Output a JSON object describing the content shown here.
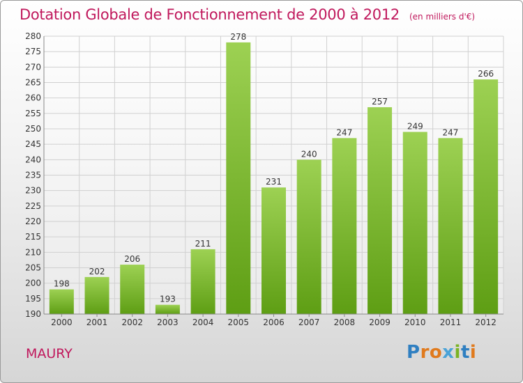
{
  "header": {
    "title": "Dotation Globale de Fonctionnement de 2000 à 2012",
    "subtitle": "(en milliers d'€)"
  },
  "place_name": "MAURY",
  "brand": {
    "text": "Proxiti",
    "letter_colors": [
      "#2f7fc1",
      "#e07a1d",
      "#e07a1d",
      "#4aa3d8",
      "#7ab324",
      "#2f7fc1",
      "#e07a1d"
    ]
  },
  "colors": {
    "bar_top": "#9dd153",
    "bar_bottom": "#5e9e14",
    "title": "#c0185c",
    "grid": "#d0d0d0"
  },
  "chart_data": {
    "type": "bar",
    "categories": [
      "2000",
      "2001",
      "2002",
      "2003",
      "2004",
      "2005",
      "2006",
      "2007",
      "2008",
      "2009",
      "2010",
      "2011",
      "2012"
    ],
    "values": [
      198,
      202,
      206,
      193,
      211,
      278,
      231,
      240,
      247,
      257,
      249,
      247,
      266
    ],
    "ylim": [
      190,
      280
    ],
    "yticks": [
      190,
      195,
      200,
      205,
      210,
      215,
      220,
      225,
      230,
      235,
      240,
      245,
      250,
      255,
      260,
      265,
      270,
      275,
      280
    ],
    "grid": true,
    "title": "Dotation Globale de Fonctionnement de 2000 à 2012",
    "subtitle": "(en milliers d'€)"
  }
}
